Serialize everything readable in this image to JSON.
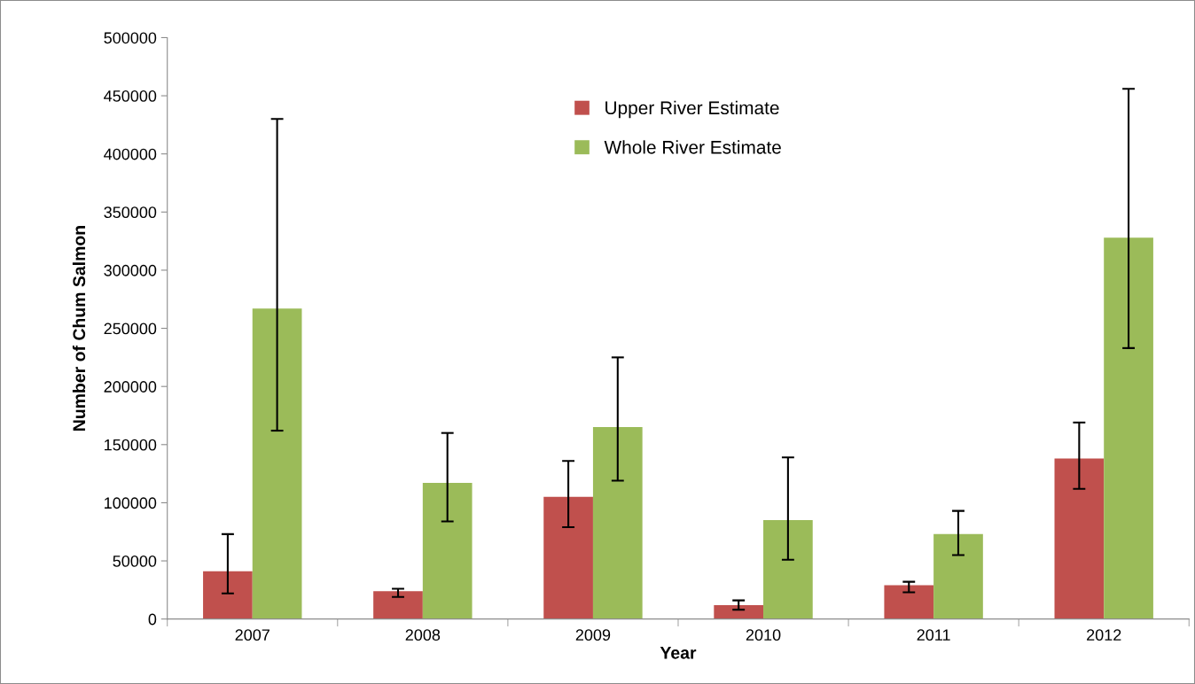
{
  "chart_data": {
    "type": "bar",
    "xlabel": "Year",
    "ylabel": "Number of Chum Salmon",
    "categories": [
      "2007",
      "2008",
      "2009",
      "2010",
      "2011",
      "2012"
    ],
    "series": [
      {
        "name": "Upper River Estimate",
        "color": "#c0504d",
        "values": [
          41000,
          24000,
          105000,
          12000,
          29000,
          138000
        ],
        "errors": [
          [
            22000,
            73000
          ],
          [
            19000,
            26000
          ],
          [
            79000,
            136000
          ],
          [
            8000,
            16000
          ],
          [
            23000,
            32000
          ],
          [
            112000,
            169000
          ]
        ]
      },
      {
        "name": "Whole River Estimate",
        "color": "#9bbb59",
        "values": [
          267000,
          117000,
          165000,
          85000,
          73000,
          328000
        ],
        "errors": [
          [
            162000,
            430000
          ],
          [
            84000,
            160000
          ],
          [
            119000,
            225000
          ],
          [
            51000,
            139000
          ],
          [
            55000,
            93000
          ],
          [
            233000,
            456000
          ]
        ]
      }
    ],
    "ylim": [
      0,
      500000
    ],
    "yticks": [
      0,
      50000,
      100000,
      150000,
      200000,
      250000,
      300000,
      350000,
      400000,
      450000,
      500000
    ],
    "grid": false,
    "legend": "top"
  }
}
